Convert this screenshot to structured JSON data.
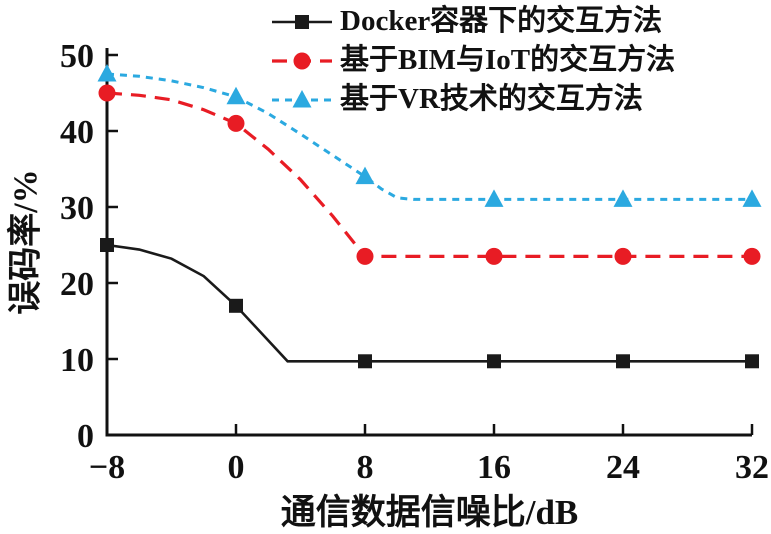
{
  "chart_data": {
    "type": "line",
    "title": "",
    "xlabel": "通信数据信噪比/dB",
    "ylabel": "误码率/%",
    "xlim": [
      -8,
      32
    ],
    "ylim": [
      0,
      50
    ],
    "xticks": [
      -8,
      0,
      8,
      16,
      24,
      32
    ],
    "yticks": [
      0,
      10,
      20,
      30,
      40,
      50
    ],
    "grid": false,
    "legend_position": "above-plot-top-left",
    "x": [
      -8,
      0,
      8,
      16,
      24,
      32
    ],
    "series": [
      {
        "name": "Docker容器下的交互方法",
        "color": "#1a1a1a",
        "marker": "square",
        "line_style": "solid",
        "values": [
          25,
          17,
          9.7,
          9.7,
          9.7,
          9.7
        ],
        "curve": [
          [
            -8,
            25
          ],
          [
            -6,
            24.4
          ],
          [
            -4,
            23.2
          ],
          [
            -2,
            20.9
          ],
          [
            0,
            17
          ],
          [
            3.2,
            9.7
          ],
          [
            8,
            9.7
          ],
          [
            16,
            9.7
          ],
          [
            24,
            9.7
          ],
          [
            32,
            9.7
          ]
        ]
      },
      {
        "name": "基于BIM与IoT的交互方法",
        "color": "#e81c24",
        "marker": "circle",
        "line_style": "dashed",
        "values": [
          45,
          41,
          23.5,
          23.5,
          23.5,
          23.5
        ],
        "curve": [
          [
            -8,
            45
          ],
          [
            -6,
            44.7
          ],
          [
            -4,
            44.1
          ],
          [
            -2,
            42.8
          ],
          [
            0,
            41
          ],
          [
            2,
            37.6
          ],
          [
            4,
            33.6
          ],
          [
            6,
            28.8
          ],
          [
            8,
            23.5
          ],
          [
            16,
            23.5
          ],
          [
            24,
            23.5
          ],
          [
            32,
            23.5
          ]
        ]
      },
      {
        "name": "基于VR技术的交互方法",
        "color": "#2ba9e0",
        "marker": "triangle",
        "line_style": "dotted-dash",
        "values": [
          47.5,
          44.5,
          34,
          31,
          31,
          31
        ],
        "curve": [
          [
            -8,
            47.5
          ],
          [
            -6,
            47.2
          ],
          [
            -4,
            46.6
          ],
          [
            -2,
            45.7
          ],
          [
            0,
            44.5
          ],
          [
            2,
            42.3
          ],
          [
            4,
            39.6
          ],
          [
            6,
            36.8
          ],
          [
            8,
            34
          ],
          [
            9,
            32.4
          ],
          [
            10,
            31.2
          ],
          [
            11,
            31
          ],
          [
            16,
            31
          ],
          [
            24,
            31
          ],
          [
            32,
            31
          ]
        ]
      }
    ]
  }
}
